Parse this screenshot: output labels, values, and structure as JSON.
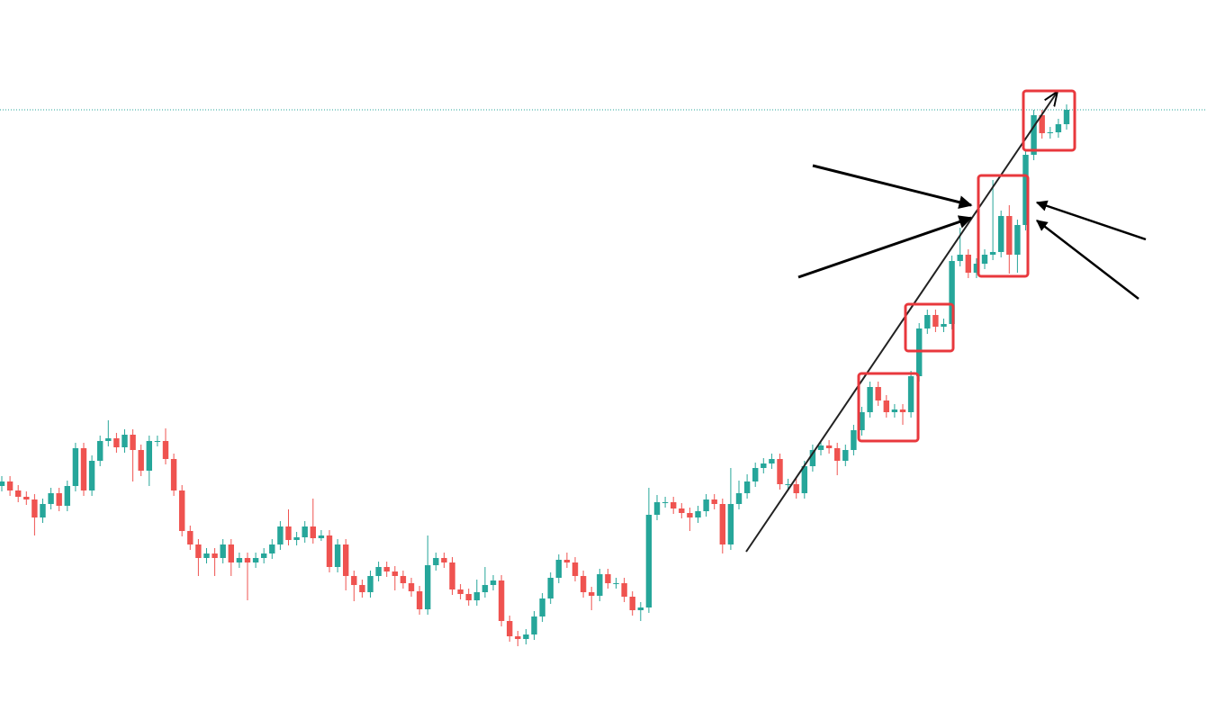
{
  "chart_data": {
    "type": "candlestick",
    "up_color": "#26a69a",
    "down_color": "#ef5350",
    "ylim": [
      0,
      790
    ],
    "ohlc": [
      [
        250,
        261,
        244,
        255
      ],
      [
        255,
        261,
        239,
        245
      ],
      [
        245,
        251,
        232,
        238
      ],
      [
        238,
        244,
        229,
        235
      ],
      [
        235,
        241,
        195,
        215
      ],
      [
        215,
        236,
        209,
        230
      ],
      [
        230,
        248,
        224,
        242
      ],
      [
        242,
        248,
        222,
        228
      ],
      [
        228,
        256,
        222,
        250
      ],
      [
        250,
        298,
        244,
        292
      ],
      [
        292,
        298,
        239,
        245
      ],
      [
        245,
        284,
        239,
        278
      ],
      [
        278,
        306,
        272,
        300
      ],
      [
        300,
        323,
        294,
        303
      ],
      [
        303,
        309,
        287,
        293
      ],
      [
        293,
        313,
        287,
        307
      ],
      [
        307,
        313,
        255,
        290
      ],
      [
        290,
        296,
        261,
        267
      ],
      [
        267,
        306,
        250,
        300
      ],
      [
        300,
        306,
        294,
        300
      ],
      [
        300,
        314,
        274,
        280
      ],
      [
        280,
        286,
        239,
        245
      ],
      [
        245,
        251,
        194,
        200
      ],
      [
        200,
        206,
        179,
        185
      ],
      [
        185,
        191,
        150,
        170
      ],
      [
        170,
        181,
        164,
        175
      ],
      [
        175,
        181,
        150,
        170
      ],
      [
        170,
        191,
        164,
        185
      ],
      [
        185,
        191,
        150,
        165
      ],
      [
        165,
        176,
        159,
        170
      ],
      [
        170,
        176,
        123,
        165
      ],
      [
        165,
        176,
        159,
        170
      ],
      [
        170,
        181,
        164,
        175
      ],
      [
        175,
        191,
        169,
        185
      ],
      [
        185,
        211,
        179,
        205
      ],
      [
        205,
        224,
        184,
        190
      ],
      [
        190,
        199,
        184,
        193
      ],
      [
        193,
        211,
        187,
        205
      ],
      [
        205,
        236,
        186,
        192
      ],
      [
        192,
        201,
        189,
        195
      ],
      [
        195,
        201,
        154,
        160
      ],
      [
        160,
        191,
        154,
        185
      ],
      [
        185,
        191,
        134,
        150
      ],
      [
        150,
        156,
        122,
        140
      ],
      [
        140,
        146,
        126,
        132
      ],
      [
        132,
        156,
        126,
        150
      ],
      [
        150,
        166,
        144,
        160
      ],
      [
        160,
        166,
        149,
        155
      ],
      [
        155,
        161,
        134,
        150
      ],
      [
        150,
        156,
        136,
        142
      ],
      [
        142,
        148,
        127,
        133
      ],
      [
        133,
        139,
        107,
        113
      ],
      [
        113,
        195,
        107,
        162
      ],
      [
        162,
        176,
        156,
        170
      ],
      [
        170,
        176,
        159,
        165
      ],
      [
        165,
        171,
        129,
        135
      ],
      [
        135,
        141,
        124,
        130
      ],
      [
        130,
        136,
        117,
        123
      ],
      [
        123,
        146,
        117,
        132
      ],
      [
        132,
        160,
        126,
        140
      ],
      [
        140,
        151,
        134,
        145
      ],
      [
        145,
        151,
        94,
        100
      ],
      [
        100,
        106,
        77,
        83
      ],
      [
        83,
        89,
        72,
        80
      ],
      [
        80,
        91,
        74,
        85
      ],
      [
        85,
        111,
        79,
        105
      ],
      [
        105,
        131,
        99,
        125
      ],
      [
        125,
        154,
        119,
        148
      ],
      [
        148,
        174,
        142,
        168
      ],
      [
        168,
        176,
        159,
        165
      ],
      [
        165,
        171,
        144,
        150
      ],
      [
        150,
        156,
        126,
        132
      ],
      [
        132,
        138,
        112,
        128
      ],
      [
        128,
        158,
        122,
        152
      ],
      [
        152,
        158,
        136,
        142
      ],
      [
        142,
        148,
        136,
        142
      ],
      [
        142,
        148,
        121,
        127
      ],
      [
        127,
        133,
        106,
        112
      ],
      [
        112,
        121,
        100,
        115
      ],
      [
        115,
        248,
        109,
        218
      ],
      [
        218,
        240,
        212,
        232
      ],
      [
        232,
        238,
        226,
        232
      ],
      [
        232,
        238,
        219,
        225
      ],
      [
        225,
        231,
        214,
        220
      ],
      [
        220,
        226,
        200,
        215
      ],
      [
        215,
        228,
        209,
        222
      ],
      [
        222,
        241,
        216,
        235
      ],
      [
        235,
        241,
        224,
        230
      ],
      [
        230,
        236,
        175,
        185
      ],
      [
        185,
        270,
        179,
        230
      ],
      [
        230,
        256,
        224,
        242
      ],
      [
        242,
        263,
        236,
        255
      ],
      [
        255,
        276,
        249,
        270
      ],
      [
        270,
        281,
        264,
        275
      ],
      [
        275,
        286,
        269,
        280
      ],
      [
        280,
        286,
        246,
        252
      ],
      [
        252,
        258,
        246,
        252
      ],
      [
        252,
        258,
        236,
        242
      ],
      [
        242,
        278,
        236,
        272
      ],
      [
        272,
        296,
        266,
        290
      ],
      [
        290,
        301,
        284,
        295
      ],
      [
        295,
        301,
        286,
        292
      ],
      [
        292,
        298,
        262,
        278
      ],
      [
        278,
        296,
        272,
        290
      ],
      [
        290,
        318,
        284,
        312
      ],
      [
        312,
        338,
        306,
        332
      ],
      [
        332,
        366,
        326,
        360
      ],
      [
        360,
        366,
        339,
        345
      ],
      [
        345,
        351,
        326,
        332
      ],
      [
        332,
        341,
        326,
        335
      ],
      [
        335,
        341,
        318,
        332
      ],
      [
        332,
        378,
        326,
        372
      ],
      [
        372,
        431,
        366,
        425
      ],
      [
        425,
        446,
        419,
        440
      ],
      [
        440,
        446,
        421,
        427
      ],
      [
        427,
        436,
        421,
        430
      ],
      [
        430,
        506,
        424,
        500
      ],
      [
        500,
        537,
        494,
        507
      ],
      [
        507,
        513,
        481,
        487
      ],
      [
        487,
        503,
        481,
        497
      ],
      [
        497,
        513,
        491,
        507
      ],
      [
        507,
        590,
        501,
        510
      ],
      [
        510,
        556,
        504,
        550
      ],
      [
        550,
        562,
        486,
        507
      ],
      [
        507,
        546,
        487,
        540
      ],
      [
        540,
        624,
        534,
        618
      ],
      [
        618,
        668,
        612,
        662
      ],
      [
        662,
        668,
        636,
        642
      ],
      [
        642,
        649,
        636,
        643
      ],
      [
        643,
        658,
        637,
        652
      ],
      [
        652,
        674,
        646,
        668
      ]
    ]
  }
}
